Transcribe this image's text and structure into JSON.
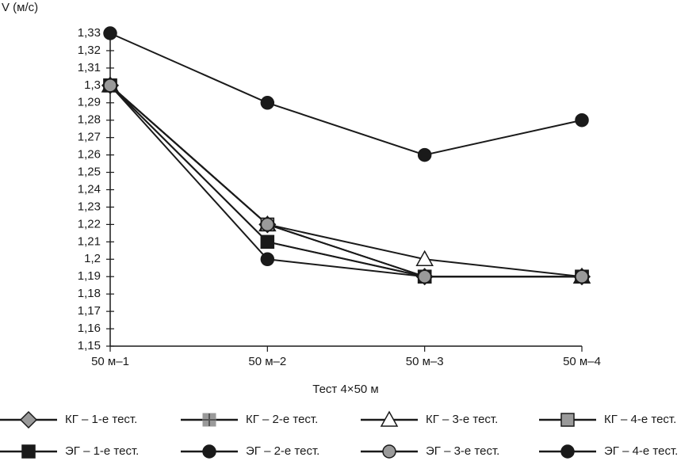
{
  "chart_data": {
    "type": "line",
    "y_label": "V (м/с)",
    "x_label": "Тест 4×50 м",
    "categories": [
      "50 м–1",
      "50 м–2",
      "50 м–3",
      "50 м–4"
    ],
    "ylim": [
      1.15,
      1.33
    ],
    "yticks": [
      {
        "value": 1.15,
        "label": "1,15"
      },
      {
        "value": 1.16,
        "label": "1,16"
      },
      {
        "value": 1.17,
        "label": "1,17"
      },
      {
        "value": 1.18,
        "label": "1,18"
      },
      {
        "value": 1.19,
        "label": "1,19"
      },
      {
        "value": 1.2,
        "label": "1,2"
      },
      {
        "value": 1.21,
        "label": "1,21"
      },
      {
        "value": 1.22,
        "label": "1,22"
      },
      {
        "value": 1.23,
        "label": "1,23"
      },
      {
        "value": 1.24,
        "label": "1,24"
      },
      {
        "value": 1.25,
        "label": "1,25"
      },
      {
        "value": 1.26,
        "label": "1,26"
      },
      {
        "value": 1.27,
        "label": "1,27"
      },
      {
        "value": 1.28,
        "label": "1,28"
      },
      {
        "value": 1.29,
        "label": "1,29"
      },
      {
        "value": 1.3,
        "label": "1,3"
      },
      {
        "value": 1.31,
        "label": "1,31"
      },
      {
        "value": 1.32,
        "label": "1,32"
      },
      {
        "value": 1.33,
        "label": "1,33"
      }
    ],
    "grid": false,
    "series": [
      {
        "name": "КГ – 1-е тест.",
        "marker": "diamond",
        "color": "#9a9a9a",
        "values": [
          1.3,
          1.22,
          1.19,
          1.19
        ]
      },
      {
        "name": "КГ – 2-е тест.",
        "marker": "cross-square",
        "color": "#9a9a9a",
        "values": [
          1.3,
          1.21,
          1.19,
          1.19
        ]
      },
      {
        "name": "КГ – 3-е тест.",
        "marker": "triangle",
        "color": "#ffffff",
        "values": [
          1.3,
          1.22,
          1.2,
          1.19
        ]
      },
      {
        "name": "КГ – 4-е тест.",
        "marker": "square",
        "color": "#9a9a9a",
        "values": [
          1.3,
          1.22,
          1.19,
          1.19
        ]
      },
      {
        "name": "ЭГ – 1-е тест.",
        "marker": "square",
        "color": "#1a1a1a",
        "values": [
          1.3,
          1.21,
          1.19,
          1.19
        ]
      },
      {
        "name": "ЭГ – 2-е тест.",
        "marker": "circle",
        "color": "#1a1a1a",
        "values": [
          1.3,
          1.2,
          1.19,
          1.19
        ]
      },
      {
        "name": "ЭГ – 3-е тест.",
        "marker": "circle",
        "color": "#9a9a9a",
        "values": [
          1.3,
          1.22,
          1.19,
          1.19
        ]
      },
      {
        "name": "ЭГ – 4-е тест.",
        "marker": "circle",
        "color": "#1a1a1a",
        "values": [
          1.33,
          1.29,
          1.26,
          1.28
        ]
      }
    ]
  }
}
